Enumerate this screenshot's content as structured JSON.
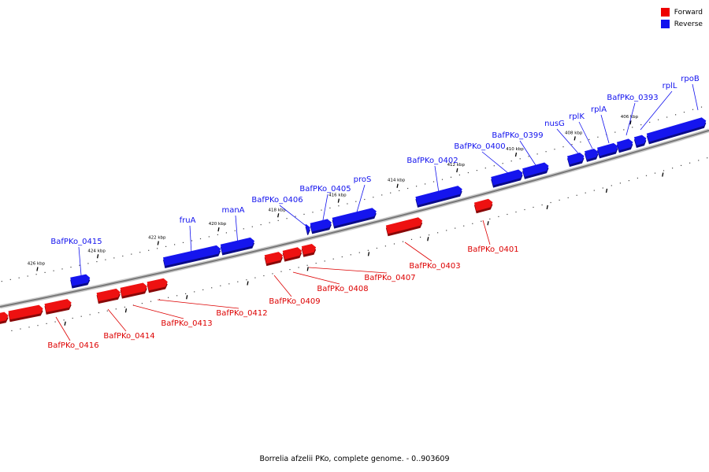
{
  "legend": {
    "forward": {
      "label": "Forward",
      "color": "#ee0000"
    },
    "reverse": {
      "label": "Reverse",
      "color": "#1111ee"
    }
  },
  "caption": "Borrelia afzelii PKo, complete genome. - 0..903609",
  "ticks": [
    "406 kbp",
    "408 kbp",
    "410 kbp",
    "412 kbp",
    "414 kbp",
    "416 kbp",
    "418 kbp",
    "420 kbp",
    "422 kbp",
    "424 kbp",
    "426 kbp"
  ],
  "reverse_genes": [
    "rpoB",
    "rplL",
    "BafPKo_0393",
    "rplA",
    "rplK",
    "nusG",
    "BafPKo_0399",
    "BafPKo_0400",
    "BafPKo_0402",
    "proS",
    "BafPKo_0405",
    "BafPKo_0406",
    "manA",
    "fruA",
    "BafPKo_0415"
  ],
  "forward_genes": [
    "BafPKo_0401",
    "BafPKo_0403",
    "BafPKo_0407",
    "BafPKo_0408",
    "BafPKo_0409",
    "BafPKo_0412",
    "BafPKo_0413",
    "BafPKo_0414",
    "BafPKo_0416"
  ]
}
